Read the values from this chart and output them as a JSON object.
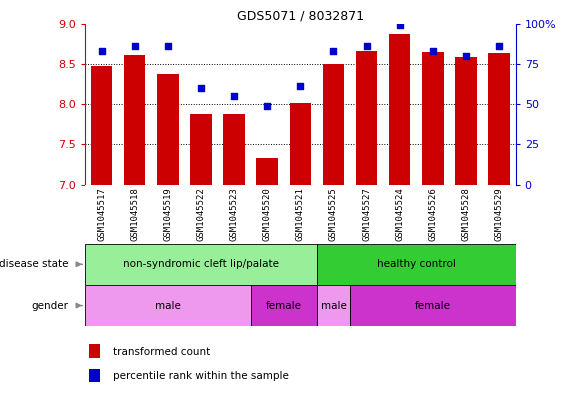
{
  "title": "GDS5071 / 8032871",
  "samples": [
    "GSM1045517",
    "GSM1045518",
    "GSM1045519",
    "GSM1045522",
    "GSM1045523",
    "GSM1045520",
    "GSM1045521",
    "GSM1045525",
    "GSM1045527",
    "GSM1045524",
    "GSM1045526",
    "GSM1045528",
    "GSM1045529"
  ],
  "transformed_count": [
    8.47,
    8.61,
    8.38,
    7.88,
    7.88,
    7.33,
    8.02,
    8.5,
    8.66,
    8.87,
    8.65,
    8.58,
    8.63
  ],
  "percentile_rank": [
    83,
    86,
    86,
    60,
    55,
    49,
    61,
    83,
    86,
    99,
    83,
    80,
    86
  ],
  "ylim_left": [
    7,
    9
  ],
  "ylim_right": [
    0,
    100
  ],
  "yticks_left": [
    7,
    7.5,
    8,
    8.5,
    9
  ],
  "yticks_right": [
    0,
    25,
    50,
    75,
    100
  ],
  "ytick_labels_right": [
    "0",
    "25",
    "50",
    "75",
    "100%"
  ],
  "bar_color": "#cc0000",
  "dot_color": "#0000cc",
  "left_axis_color": "#cc0000",
  "right_axis_color": "#0000cc",
  "sample_bg_color": "#cccccc",
  "grid_dotted": [
    7.5,
    8.0,
    8.5
  ],
  "ds_groups": [
    {
      "label": "non-syndromic cleft lip/palate",
      "start": 0,
      "end": 7,
      "color": "#99ee99"
    },
    {
      "label": "healthy control",
      "start": 7,
      "end": 13,
      "color": "#33cc33"
    }
  ],
  "gd_groups": [
    {
      "label": "male",
      "start": 0,
      "end": 5,
      "color": "#ee99ee"
    },
    {
      "label": "female",
      "start": 5,
      "end": 7,
      "color": "#cc33cc"
    },
    {
      "label": "male",
      "start": 7,
      "end": 8,
      "color": "#ee99ee"
    },
    {
      "label": "female",
      "start": 8,
      "end": 13,
      "color": "#cc33cc"
    }
  ],
  "legend_items": [
    {
      "label": "transformed count",
      "color": "#cc0000"
    },
    {
      "label": "percentile rank within the sample",
      "color": "#0000cc"
    }
  ]
}
